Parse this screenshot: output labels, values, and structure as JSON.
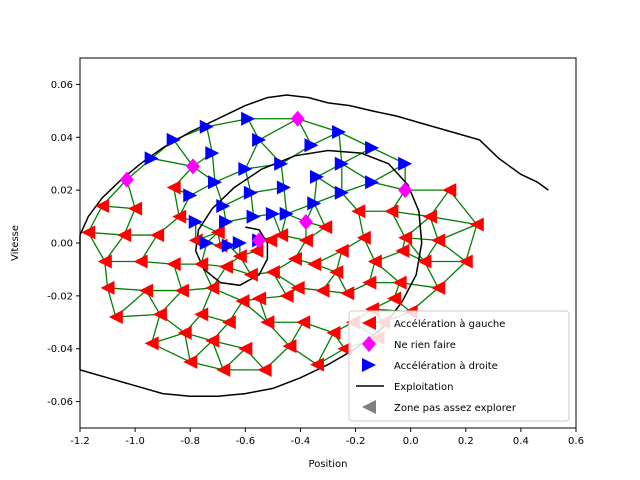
{
  "chart_data": {
    "type": "scatter",
    "xlabel": "Position",
    "ylabel": "Vitesse",
    "xlim": [
      -1.2,
      0.6
    ],
    "ylim": [
      -0.07,
      0.07
    ],
    "xticks": [
      "-1.2",
      "-1.0",
      "-0.8",
      "-0.6",
      "-0.4",
      "-0.2",
      "0.0",
      "0.2",
      "0.4",
      "0.6"
    ],
    "yticks": [
      "-0.06",
      "-0.04",
      "-0.02",
      "0.00",
      "0.02",
      "0.04",
      "0.06"
    ],
    "grid": false,
    "legend_position": "lower-right",
    "colors": {
      "left": "#ff0000",
      "none": "#ff00ff",
      "right": "#0000ff",
      "exploitation": "#000000",
      "unexplored": "#808080",
      "edges": "#008000"
    },
    "series": [
      {
        "name": "Accélération à gauche",
        "marker": "triangle-left",
        "points": [
          [
            -1.17,
            0.004
          ],
          [
            -1.12,
            0.014
          ],
          [
            -1.11,
            -0.007
          ],
          [
            -1.1,
            -0.017
          ],
          [
            -1.07,
            -0.028
          ],
          [
            -1.04,
            0.003
          ],
          [
            -1.0,
            0.013
          ],
          [
            -0.98,
            -0.007
          ],
          [
            -0.96,
            -0.018
          ],
          [
            -0.94,
            -0.038
          ],
          [
            -0.92,
            0.003
          ],
          [
            -0.91,
            -0.027
          ],
          [
            -0.86,
            0.021
          ],
          [
            -0.86,
            -0.008
          ],
          [
            -0.84,
            0.01
          ],
          [
            -0.83,
            -0.018
          ],
          [
            -0.82,
            -0.034
          ],
          [
            -0.8,
            -0.045
          ],
          [
            -0.78,
            0.001
          ],
          [
            -0.76,
            -0.008
          ],
          [
            -0.76,
            -0.027
          ],
          [
            -0.72,
            -0.017
          ],
          [
            -0.72,
            -0.037
          ],
          [
            -0.7,
            0.004
          ],
          [
            -0.69,
            -0.001
          ],
          [
            -0.68,
            -0.048
          ],
          [
            -0.67,
            -0.009
          ],
          [
            -0.66,
            -0.03
          ],
          [
            -0.62,
            -0.005
          ],
          [
            -0.61,
            -0.022
          ],
          [
            -0.6,
            -0.04
          ],
          [
            -0.58,
            -0.012
          ],
          [
            -0.56,
            -0.003
          ],
          [
            -0.55,
            -0.021
          ],
          [
            -0.53,
            -0.048
          ],
          [
            -0.52,
            -0.03
          ],
          [
            -0.51,
            0.001
          ],
          [
            -0.5,
            -0.011
          ],
          [
            -0.47,
            0.003
          ],
          [
            -0.45,
            -0.02
          ],
          [
            -0.44,
            -0.039
          ],
          [
            -0.42,
            -0.006
          ],
          [
            -0.41,
            -0.017
          ],
          [
            -0.39,
            -0.03
          ],
          [
            -0.38,
            0.001
          ],
          [
            -0.35,
            -0.008
          ],
          [
            -0.34,
            -0.046
          ],
          [
            -0.32,
            -0.018
          ],
          [
            -0.31,
            0.006
          ],
          [
            -0.28,
            -0.034
          ],
          [
            -0.27,
            -0.011
          ],
          [
            -0.25,
            -0.003
          ],
          [
            -0.24,
            -0.04
          ],
          [
            -0.23,
            -0.019
          ],
          [
            -0.21,
            -0.03
          ],
          [
            -0.19,
            0.012
          ],
          [
            -0.17,
            0.002
          ],
          [
            -0.15,
            -0.015
          ],
          [
            -0.14,
            -0.025
          ],
          [
            -0.13,
            -0.007
          ],
          [
            -0.12,
            -0.036
          ],
          [
            -0.1,
            -0.03
          ],
          [
            -0.07,
            0.012
          ],
          [
            -0.06,
            -0.021
          ],
          [
            -0.04,
            -0.015
          ],
          [
            -0.03,
            -0.003
          ],
          [
            -0.02,
            0.002
          ],
          [
            0.0,
            -0.026
          ],
          [
            0.05,
            -0.007
          ],
          [
            0.07,
            0.01
          ],
          [
            0.1,
            0.001
          ],
          [
            0.1,
            -0.017
          ],
          [
            0.14,
            0.02
          ],
          [
            0.2,
            -0.007
          ],
          [
            0.24,
            0.007
          ]
        ]
      },
      {
        "name": "Ne rien faire",
        "marker": "diamond",
        "points": [
          [
            -1.03,
            0.024
          ],
          [
            -0.79,
            0.029
          ],
          [
            -0.55,
            0.001
          ],
          [
            -0.41,
            0.047
          ],
          [
            -0.38,
            0.008
          ],
          [
            -0.02,
            0.02
          ]
        ]
      },
      {
        "name": "Accélération à droite",
        "marker": "triangle-right",
        "points": [
          [
            -0.94,
            0.032
          ],
          [
            -0.86,
            0.039
          ],
          [
            -0.8,
            0.018
          ],
          [
            -0.78,
            0.008
          ],
          [
            -0.74,
            0.044
          ],
          [
            -0.74,
            0.0
          ],
          [
            -0.72,
            0.034
          ],
          [
            -0.71,
            0.023
          ],
          [
            -0.68,
            0.014
          ],
          [
            -0.67,
            0.008
          ],
          [
            -0.66,
            -0.001
          ],
          [
            -0.62,
            0.0
          ],
          [
            -0.6,
            0.028
          ],
          [
            -0.59,
            0.047
          ],
          [
            -0.58,
            0.019
          ],
          [
            -0.57,
            0.01
          ],
          [
            -0.55,
            0.039
          ],
          [
            -0.55,
            0.001
          ],
          [
            -0.5,
            0.011
          ],
          [
            -0.47,
            0.03
          ],
          [
            -0.46,
            0.021
          ],
          [
            -0.45,
            0.011
          ],
          [
            -0.36,
            0.037
          ],
          [
            -0.35,
            0.015
          ],
          [
            -0.34,
            0.025
          ],
          [
            -0.26,
            0.042
          ],
          [
            -0.25,
            0.03
          ],
          [
            -0.25,
            0.019
          ],
          [
            -0.14,
            0.036
          ],
          [
            -0.14,
            0.023
          ],
          [
            -0.02,
            0.03
          ]
        ]
      },
      {
        "name": "Exploitation",
        "marker": "line",
        "points": [
          [
            -1.2,
            0.003
          ],
          [
            -1.17,
            0.01
          ],
          [
            -1.12,
            0.017
          ],
          [
            -1.05,
            0.024
          ],
          [
            -0.98,
            0.03
          ],
          [
            -0.9,
            0.036
          ],
          [
            -0.8,
            0.042
          ],
          [
            -0.7,
            0.047
          ],
          [
            -0.6,
            0.052
          ],
          [
            -0.52,
            0.055
          ],
          [
            -0.45,
            0.056
          ],
          [
            -0.37,
            0.055
          ],
          [
            -0.3,
            0.053
          ],
          [
            -0.22,
            0.052
          ],
          [
            -0.14,
            0.05
          ],
          [
            -0.05,
            0.048
          ],
          [
            0.05,
            0.045
          ],
          [
            0.15,
            0.042
          ],
          [
            0.25,
            0.039
          ],
          [
            0.32,
            0.032
          ],
          [
            0.4,
            0.026
          ],
          [
            0.46,
            0.023
          ],
          [
            0.5,
            0.02
          ]
        ],
        "loop": [
          [
            -1.2,
            -0.048
          ],
          [
            -1.1,
            -0.051
          ],
          [
            -1.0,
            -0.054
          ],
          [
            -0.9,
            -0.057
          ],
          [
            -0.8,
            -0.058
          ],
          [
            -0.7,
            -0.058
          ],
          [
            -0.6,
            -0.057
          ],
          [
            -0.5,
            -0.055
          ],
          [
            -0.4,
            -0.051
          ],
          [
            -0.3,
            -0.046
          ],
          [
            -0.2,
            -0.04
          ],
          [
            -0.1,
            -0.032
          ],
          [
            -0.03,
            -0.022
          ],
          [
            0.02,
            -0.012
          ],
          [
            0.04,
            0.0
          ],
          [
            0.03,
            0.012
          ],
          [
            -0.01,
            0.022
          ],
          [
            -0.08,
            0.03
          ],
          [
            -0.18,
            0.034
          ],
          [
            -0.3,
            0.035
          ],
          [
            -0.42,
            0.033
          ],
          [
            -0.54,
            0.028
          ],
          [
            -0.64,
            0.021
          ],
          [
            -0.72,
            0.013
          ],
          [
            -0.77,
            0.005
          ],
          [
            -0.78,
            -0.003
          ],
          [
            -0.75,
            -0.01
          ],
          [
            -0.69,
            -0.015
          ],
          [
            -0.62,
            -0.016
          ],
          [
            -0.55,
            -0.012
          ],
          [
            -0.52,
            -0.006
          ],
          [
            -0.52,
            0.0
          ],
          [
            -0.55,
            0.005
          ],
          [
            -0.6,
            0.006
          ]
        ]
      },
      {
        "name": "Zone pas assez explorer",
        "marker": "triangle-left",
        "points": []
      }
    ],
    "edges_from_points": true
  }
}
